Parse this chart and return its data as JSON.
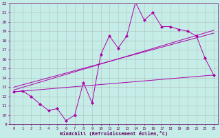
{
  "xlabel": "Windchill (Refroidissement éolien,°C)",
  "xlim": [
    -0.5,
    23.5
  ],
  "ylim": [
    9,
    22
  ],
  "xticks": [
    0,
    1,
    2,
    3,
    4,
    5,
    6,
    7,
    8,
    9,
    10,
    11,
    12,
    13,
    14,
    15,
    16,
    17,
    18,
    19,
    20,
    21,
    22,
    23
  ],
  "yticks": [
    9,
    10,
    11,
    12,
    13,
    14,
    15,
    16,
    17,
    18,
    19,
    20,
    21,
    22
  ],
  "bg_color": "#c5ece6",
  "line_color": "#aa00aa",
  "grid_color": "#999999",
  "zigzag_x": [
    0,
    1,
    2,
    3,
    4,
    5,
    6,
    7,
    8,
    9,
    10,
    11,
    12,
    13,
    14,
    15,
    16,
    17,
    18,
    19,
    20,
    21,
    22,
    23
  ],
  "zigzag_y": [
    12.5,
    12.6,
    12.0,
    11.2,
    10.5,
    10.7,
    9.4,
    10.0,
    13.5,
    11.3,
    16.5,
    18.5,
    17.2,
    18.5,
    22.1,
    20.2,
    21.0,
    19.5,
    19.5,
    19.2,
    19.0,
    18.5,
    16.1,
    14.3
  ],
  "trend1_x": [
    0,
    23
  ],
  "trend1_y": [
    12.5,
    14.3
  ],
  "trend2_x": [
    0,
    23
  ],
  "trend2_y": [
    13.0,
    18.8
  ],
  "trend3_x": [
    0,
    23
  ],
  "trend3_y": [
    12.7,
    19.1
  ]
}
